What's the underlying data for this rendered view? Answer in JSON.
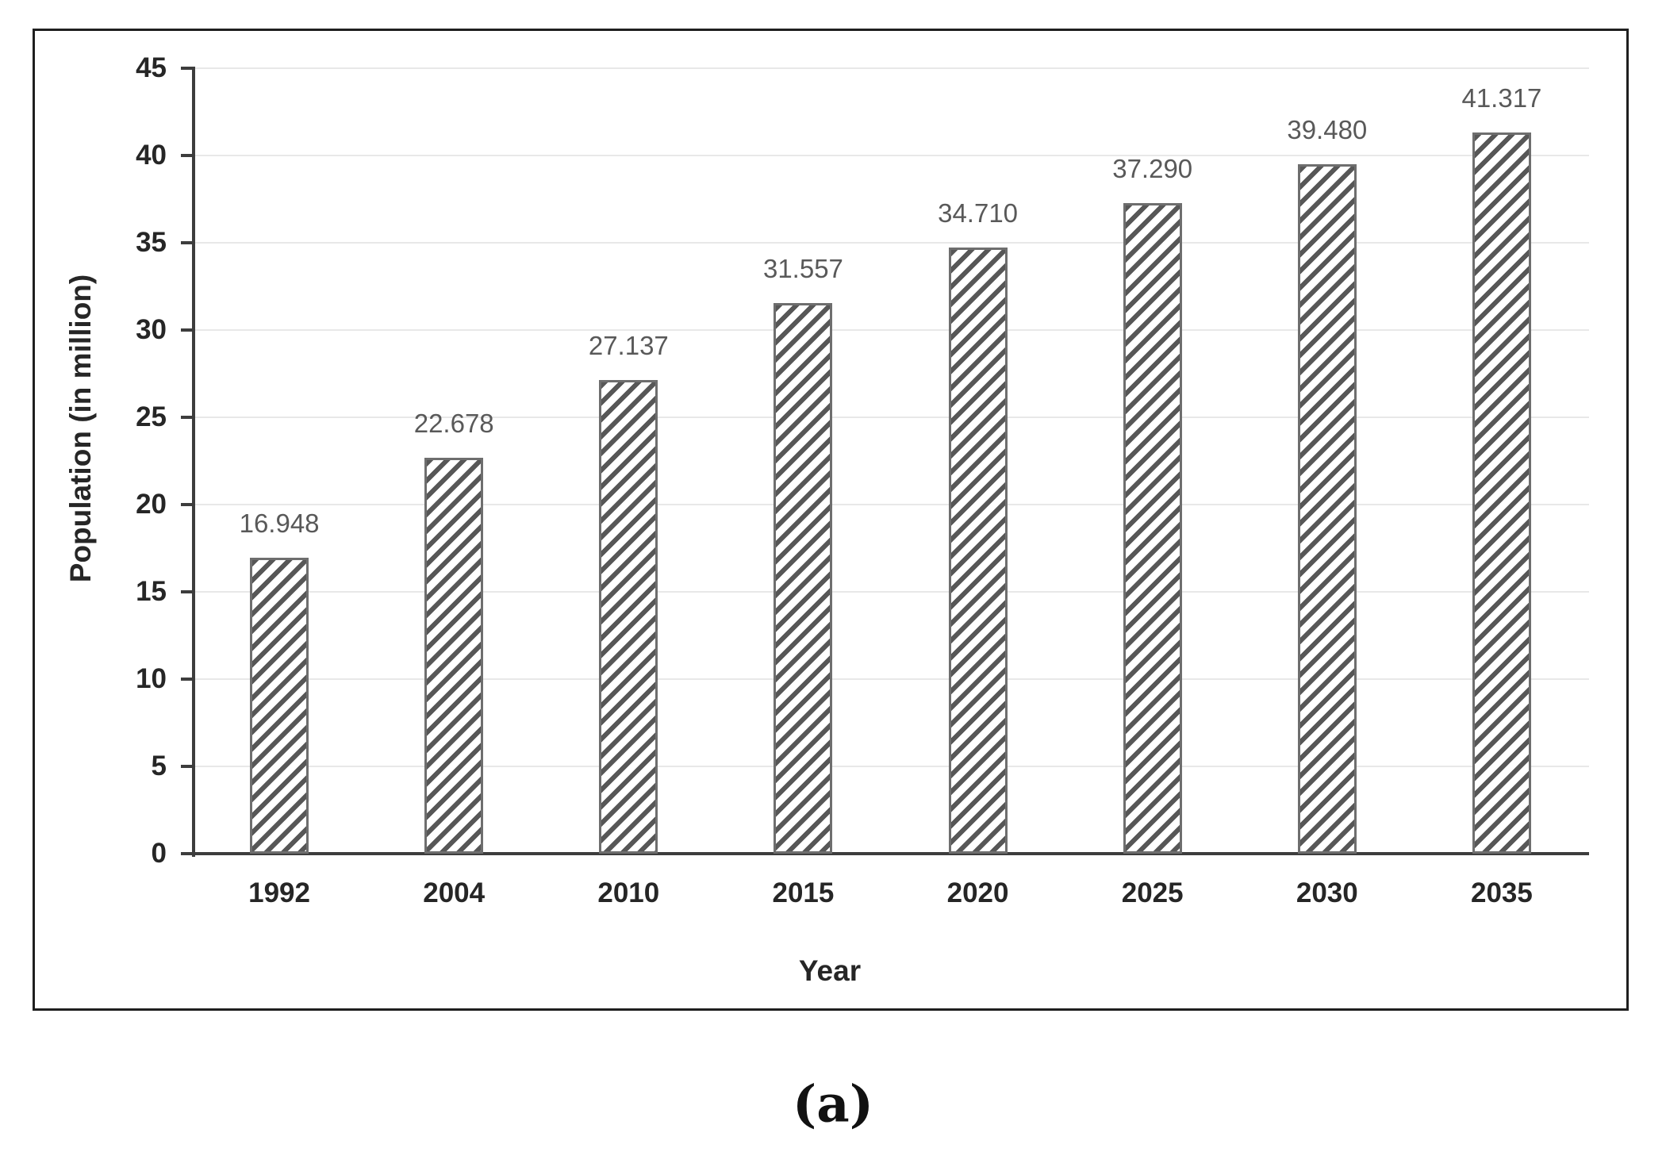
{
  "figure": {
    "caption": "(a)"
  },
  "chart_data": {
    "type": "bar",
    "title": "",
    "categories": [
      "1992",
      "2004",
      "2010",
      "2015",
      "2020",
      "2025",
      "2030",
      "2035"
    ],
    "values": [
      16.948,
      22.678,
      27.137,
      31.557,
      34.71,
      37.29,
      39.48,
      41.317
    ],
    "value_labels": [
      "16.948",
      "22.678",
      "27.137",
      "31.557",
      "34.710",
      "37.290",
      "39.480",
      "41.317"
    ],
    "xlabel": "Year",
    "ylabel": "Population (in million)",
    "ylim": [
      0,
      45
    ],
    "yticks": [
      0,
      5,
      10,
      15,
      20,
      25,
      30,
      35,
      40,
      45
    ],
    "grid": true,
    "legend": "none",
    "bar_style": "white fill with gray diagonal hatch rising left-to-right, gray border",
    "colors": {
      "hatch_stripe": "#575757",
      "bar_border": "#6e6e6e",
      "axis_line": "#3d3d3d",
      "gridline": "#e8e8e8",
      "axis_text": "#262626",
      "data_label": "#595959",
      "frame_border": "#1f1f1f",
      "background": "#ffffff"
    }
  }
}
